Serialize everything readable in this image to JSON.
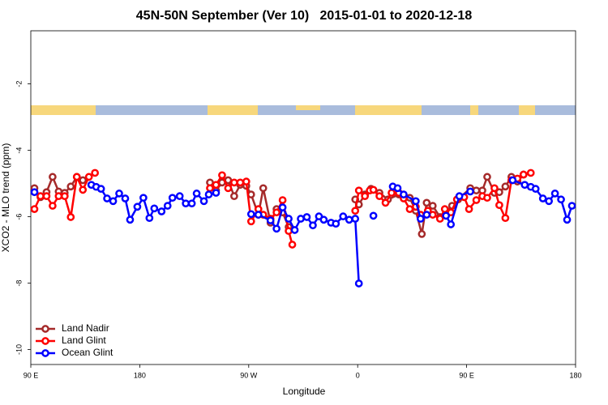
{
  "chart_data": {
    "type": "line",
    "title": "45N-50N September (Ver 10)   2015-01-01 to 2020-12-18",
    "xlabel": "Longitude",
    "ylabel": "XCO2 - MLO trend (ppm)",
    "xlim": [
      90,
      540
    ],
    "ylim": [
      -10.45,
      -0.4
    ],
    "xticks": [
      {
        "value": 90,
        "label": "90 E"
      },
      180,
      {
        "value": 270,
        "label": "90 W"
      },
      {
        "value": 360,
        "label": "0"
      },
      {
        "value": 450,
        "label": "90 E"
      },
      {
        "value": 540,
        "label": "180"
      }
    ],
    "yticks": [
      -2,
      -4,
      -6,
      -8,
      -10
    ],
    "legend": "lower left",
    "series": [
      {
        "name": "Land Nadir",
        "color": "#a52a2a",
        "x": [
          93,
          98,
          103,
          108,
          113,
          118,
          123,
          128,
          133,
          null,
          238,
          243,
          248,
          253,
          258,
          263,
          268,
          272,
          278,
          282,
          288,
          293,
          298,
          303,
          null,
          358,
          361,
          366,
          371,
          378,
          385,
          394,
          403,
          408,
          413,
          417,
          422,
          428,
          433,
          438,
          443,
          453,
          458,
          463,
          467,
          473,
          477,
          482,
          487,
          492,
          497
        ],
        "values": [
          -5.14,
          -5.41,
          -5.26,
          -4.8,
          -5.24,
          -5.28,
          -5.09,
          -4.8,
          -4.9,
          null,
          -4.97,
          -5.21,
          -4.97,
          -4.9,
          -5.38,
          -5.04,
          -5.07,
          -5.33,
          -5.94,
          -5.14,
          -6.18,
          -5.77,
          -5.87,
          -6.31,
          null,
          -5.48,
          -5.63,
          -5.33,
          -5.16,
          -5.28,
          -5.48,
          -5.33,
          -5.43,
          -5.82,
          -6.52,
          -5.58,
          -5.67,
          -6.01,
          -5.87,
          -5.67,
          -5.48,
          -5.14,
          -5.21,
          -5.21,
          -4.8,
          -5.28,
          -5.26,
          -5.09,
          -4.8,
          -4.94,
          -4.73
        ]
      },
      {
        "name": "Land Glint",
        "color": "#ff0000",
        "x": [
          93,
          98,
          103,
          108,
          113,
          118,
          123,
          128,
          133,
          138,
          143,
          null,
          238,
          243,
          248,
          253,
          258,
          263,
          268,
          272,
          278,
          282,
          288,
          293,
          298,
          303,
          306,
          null,
          358,
          361,
          366,
          370,
          373,
          378,
          383,
          388,
          394,
          398,
          403,
          408,
          412,
          418,
          422,
          428,
          432,
          437,
          442,
          448,
          452,
          458,
          463,
          467,
          473,
          477,
          482,
          487,
          492,
          497,
          503
        ],
        "values": [
          -5.77,
          -5.38,
          -5.38,
          -5.67,
          -5.38,
          -5.38,
          -6.01,
          -4.8,
          -5.19,
          -4.8,
          -4.68,
          null,
          -5.14,
          -5.04,
          -4.75,
          -5.14,
          -4.97,
          -4.97,
          -4.94,
          -6.14,
          -5.77,
          -5.94,
          -6.06,
          -5.87,
          -5.5,
          -6.43,
          -6.84,
          null,
          -5.82,
          -5.21,
          -5.38,
          -5.21,
          -5.19,
          -5.38,
          -5.58,
          -5.28,
          -5.28,
          -5.45,
          -5.77,
          -5.7,
          -5.94,
          -5.82,
          -5.94,
          -6.06,
          -5.77,
          -5.87,
          -5.48,
          -5.41,
          -5.77,
          -5.5,
          -5.38,
          -5.43,
          -5.14,
          -5.65,
          -6.04,
          -4.9,
          -4.85,
          -4.73,
          -4.68
        ]
      },
      {
        "name": "Ocean Glint",
        "color": "#0000ff",
        "x": [
          93,
          null,
          140,
          144,
          148,
          153,
          158,
          163,
          168,
          172,
          178,
          183,
          188,
          192,
          198,
          203,
          207,
          213,
          218,
          223,
          227,
          233,
          237,
          243,
          null,
          272,
          278,
          288,
          293,
          298,
          303,
          308,
          313,
          318,
          323,
          328,
          332,
          338,
          342,
          348,
          353,
          358,
          361,
          null,
          373,
          null,
          389,
          393,
          398,
          408,
          412,
          417,
          null,
          433,
          437,
          444,
          453,
          null,
          488,
          498,
          503,
          507,
          513,
          518,
          523,
          528,
          533,
          537
        ],
        "values": [
          -5.26,
          null,
          -5.04,
          -5.1,
          -5.16,
          -5.45,
          -5.53,
          -5.3,
          -5.45,
          -6.09,
          -5.7,
          -5.43,
          -6.04,
          -5.75,
          -5.84,
          -5.67,
          -5.43,
          -5.38,
          -5.6,
          -5.6,
          -5.3,
          -5.53,
          -5.33,
          -5.28,
          null,
          -5.92,
          -5.94,
          -6.11,
          -6.36,
          -5.72,
          -6.06,
          -6.4,
          -6.06,
          -6.01,
          -6.26,
          -5.99,
          -6.09,
          -6.18,
          -6.21,
          -5.99,
          -6.09,
          -6.06,
          -8.01,
          null,
          -5.97,
          null,
          -5.09,
          -5.14,
          -5.33,
          -5.53,
          -6.06,
          -5.94,
          null,
          -5.97,
          -6.23,
          -5.38,
          -5.24,
          null,
          -4.9,
          -5.04,
          -5.1,
          -5.16,
          -5.45,
          -5.53,
          -5.3,
          -5.48,
          -6.09,
          -5.67
        ]
      }
    ]
  }
}
